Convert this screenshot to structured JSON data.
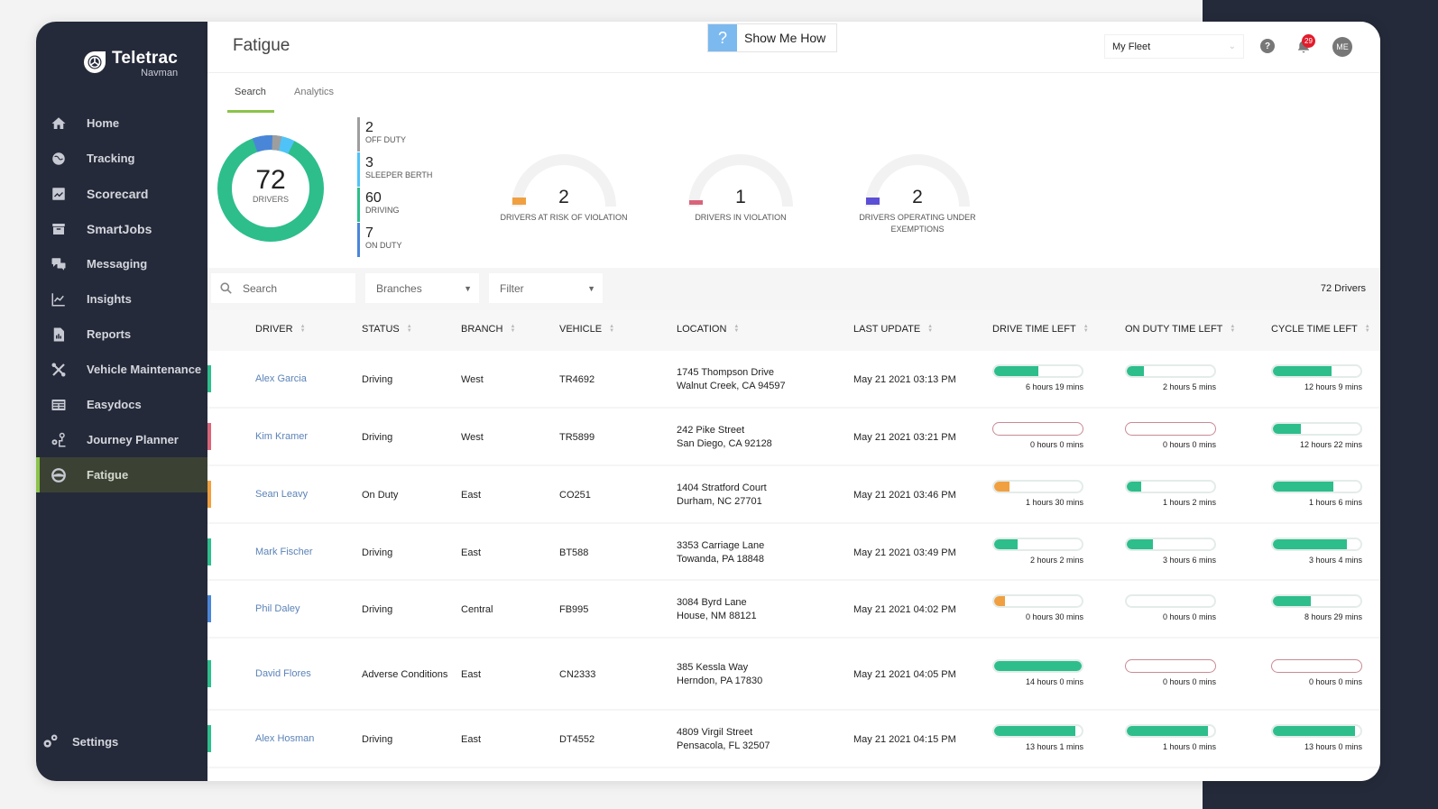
{
  "brand": {
    "name": "Teletrac",
    "sub": "Navman"
  },
  "sidebar": {
    "items": [
      {
        "label": "Home",
        "icon": "home-icon"
      },
      {
        "label": "Tracking",
        "icon": "globe-icon"
      },
      {
        "label": "Scorecard",
        "icon": "scorecard-icon"
      },
      {
        "label": "SmartJobs",
        "icon": "archive-box-icon"
      },
      {
        "label": "Messaging",
        "icon": "chat-bubbles-icon"
      },
      {
        "label": "Insights",
        "icon": "line-chart-icon"
      },
      {
        "label": "Reports",
        "icon": "report-document-icon"
      },
      {
        "label": "Vehicle Maintenance",
        "icon": "wrench-screwdriver-icon"
      },
      {
        "label": "Easydocs",
        "icon": "document-list-icon"
      },
      {
        "label": "Journey Planner",
        "icon": "route-pin-icon"
      },
      {
        "label": "Fatigue",
        "icon": "steering-wheel-icon",
        "active": true
      }
    ],
    "settings_label": "Settings"
  },
  "header": {
    "title": "Fatigue",
    "show_me_how": "Show Me How",
    "show_me_how_icon": "?",
    "fleet_select": "My Fleet",
    "help_icon": "?",
    "notification_count": "29",
    "avatar_initials": "ME"
  },
  "tabs": [
    {
      "label": "Search",
      "active": true
    },
    {
      "label": "Analytics",
      "active": false
    }
  ],
  "summary": {
    "total": "72",
    "total_label": "DRIVERS",
    "breakdown": [
      {
        "value": "2",
        "label": "OFF DUTY",
        "color": "#9e9e9e"
      },
      {
        "value": "3",
        "label": "SLEEPER BERTH",
        "color": "#4fc3f7"
      },
      {
        "value": "60",
        "label": "DRIVING",
        "color": "#2dbe8c"
      },
      {
        "value": "7",
        "label": "ON DUTY",
        "color": "#4a86d8"
      }
    ],
    "gauges": [
      {
        "value": "2",
        "label": "DRIVERS AT RISK OF VIOLATION",
        "color": "#f0a040"
      },
      {
        "value": "1",
        "label": "DRIVERS IN VIOLATION",
        "color": "#d9647a"
      },
      {
        "value": "2",
        "label": "DRIVERS OPERATING UNDER EXEMPTIONS",
        "color": "#5b4fd6"
      }
    ]
  },
  "filters": {
    "search_placeholder": "Search",
    "branches": "Branches",
    "filter": "Filter",
    "count": "72 Drivers"
  },
  "table": {
    "columns": [
      "DRIVER",
      "STATUS",
      "BRANCH",
      "VEHICLE",
      "LOCATION",
      "LAST UPDATE",
      "DRIVE TIME LEFT",
      "ON DUTY TIME LEFT",
      "CYCLE TIME LEFT"
    ],
    "rows": [
      {
        "driver": "Alex Garcia",
        "status": "Driving",
        "branch": "West",
        "vehicle": "TR4692",
        "addr1": "1745  Thompson Drive",
        "addr2": "Walnut Creek, CA 94597",
        "updated": "May 21 2021 03:13 PM",
        "stripe": "#2dbe8c",
        "drive": {
          "text": "6 hours 19 mins",
          "pct": 50,
          "color": "#2dbe8c"
        },
        "onduty": {
          "text": "2 hours 5 mins",
          "pct": 20,
          "color": "#2dbe8c"
        },
        "cycle": {
          "text": "12 hours 9 mins",
          "pct": 67,
          "color": "#2dbe8c"
        }
      },
      {
        "driver": "Kim Kramer",
        "status": "Driving",
        "branch": "West",
        "vehicle": "TR5899",
        "addr1": "242  Pike Street",
        "addr2": "San Diego, CA 92128",
        "updated": "May 21 2021 03:21 PM",
        "stripe": "#d9647a",
        "drive": {
          "text": "0 hours 0 mins",
          "pct": 0,
          "color": "#2dbe8c",
          "zero": true
        },
        "onduty": {
          "text": "0 hours 0 mins",
          "pct": 0,
          "color": "#2dbe8c",
          "zero": true
        },
        "cycle": {
          "text": "12 hours 22 mins",
          "pct": 32,
          "color": "#2dbe8c"
        }
      },
      {
        "driver": "Sean Leavy",
        "status": "On Duty",
        "branch": "East",
        "vehicle": "CO251",
        "addr1": "1404  Stratford Court",
        "addr2": "Durham, NC 27701",
        "updated": "May 21 2021 03:46 PM",
        "stripe": "#f0a040",
        "drive": {
          "text": "1 hours 30 mins",
          "pct": 18,
          "color": "#f0a040"
        },
        "onduty": {
          "text": "1 hours 2 mins",
          "pct": 17,
          "color": "#2dbe8c"
        },
        "cycle": {
          "text": "1 hours 6 mins",
          "pct": 69,
          "color": "#2dbe8c"
        }
      },
      {
        "driver": "Mark Fischer",
        "status": "Driving",
        "branch": "East",
        "vehicle": "BT588",
        "addr1": "3353  Carriage Lane",
        "addr2": "Towanda, PA 18848",
        "updated": "May 21 2021 03:49 PM",
        "stripe": "#2dbe8c",
        "drive": {
          "text": "2 hours 2 mins",
          "pct": 27,
          "color": "#2dbe8c"
        },
        "onduty": {
          "text": "3 hours 6 mins",
          "pct": 30,
          "color": "#2dbe8c"
        },
        "cycle": {
          "text": "3 hours 4 mins",
          "pct": 85,
          "color": "#2dbe8c"
        }
      },
      {
        "driver": "Phil Daley",
        "status": "Driving",
        "branch": "Central",
        "vehicle": "FB995",
        "addr1": "3084  Byrd Lane",
        "addr2": "House, NM 88121",
        "updated": "May 21 2021 04:02 PM",
        "stripe": "#4a86d8",
        "drive": {
          "text": "0 hours 30 mins",
          "pct": 12,
          "color": "#f0a040"
        },
        "onduty": {
          "text": "0 hours 0 mins",
          "pct": 0,
          "color": "#2dbe8c"
        },
        "cycle": {
          "text": "8 hours 29 mins",
          "pct": 43,
          "color": "#2dbe8c"
        }
      },
      {
        "driver": "David Flores",
        "status": "Adverse Conditions",
        "branch": "East",
        "vehicle": "CN2333",
        "addr1": "385  Kessla Way",
        "addr2": "Herndon, PA 17830",
        "updated": "May 21 2021 04:05 PM",
        "stripe": "#2dbe8c",
        "drive": {
          "text": "14 hours 0 mins",
          "pct": 100,
          "color": "#2dbe8c"
        },
        "onduty": {
          "text": "0 hours 0 mins",
          "pct": 0,
          "color": "#2dbe8c",
          "zero": true
        },
        "cycle": {
          "text": "0 hours 0 mins",
          "pct": 0,
          "color": "#2dbe8c",
          "zero": true
        }
      },
      {
        "driver": "Alex Hosman",
        "status": "Driving",
        "branch": "East",
        "vehicle": "DT4552",
        "addr1": "4809  Virgil Street",
        "addr2": "Pensacola, FL 32507",
        "updated": "May 21 2021 04:15 PM",
        "stripe": "#2dbe8c",
        "drive": {
          "text": "13 hours 1 mins",
          "pct": 93,
          "color": "#2dbe8c"
        },
        "onduty": {
          "text": "1 hours 0 mins",
          "pct": 93,
          "color": "#2dbe8c"
        },
        "cycle": {
          "text": "13 hours 0 mins",
          "pct": 94,
          "color": "#2dbe8c"
        }
      }
    ]
  }
}
